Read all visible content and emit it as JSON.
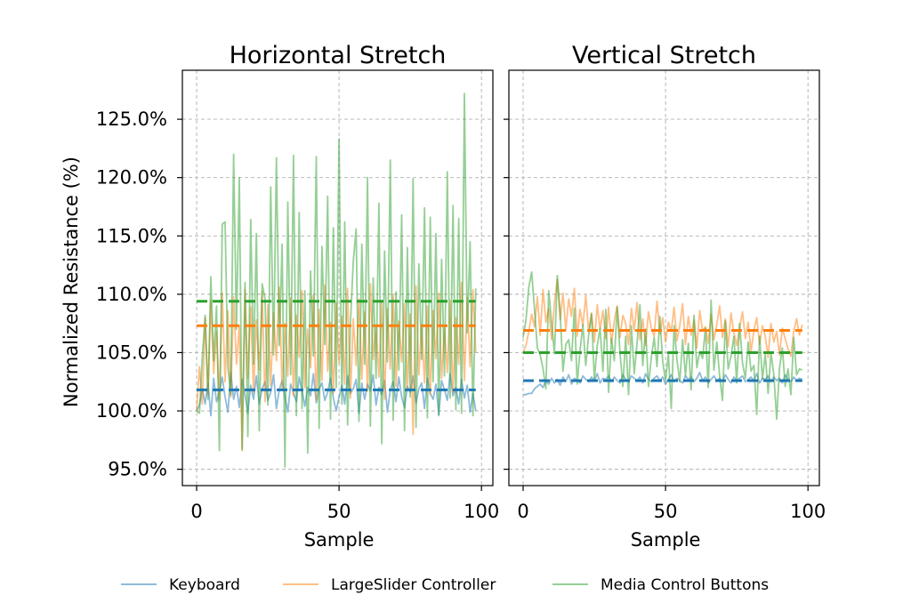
{
  "chart_data": {
    "type": "line",
    "ylabel": "Normalized Resistance (%)",
    "ylim": [
      93.6,
      129.2
    ],
    "yticks": [
      95,
      100,
      105,
      110,
      115,
      120,
      125
    ],
    "ytick_labels": [
      "95.0%",
      "100.0%",
      "105.0%",
      "110.0%",
      "115.0%",
      "120.0%",
      "125.0%"
    ],
    "xlim": [
      -5,
      104
    ],
    "xticks": [
      0,
      50,
      100
    ],
    "xtick_labels": [
      "0",
      "50",
      "100"
    ],
    "legend": {
      "placement": "bottom-center",
      "entries": [
        "Keyboard",
        "LargeSlider Controller",
        "Media Control Buttons"
      ]
    },
    "colors": {
      "keyboard": "#1f77b4",
      "slider": "#ff7f0e",
      "media": "#2ca02c",
      "grid": "#b0b0b0"
    },
    "panels": [
      {
        "title": "Horizontal Stretch",
        "xlabel": "Sample",
        "series": [
          {
            "name": "Keyboard",
            "mean": 101.8,
            "values": [
              100.0,
              100.5,
              101.9,
              100.6,
              102.4,
              99.6,
              102.8,
              100.8,
              101.6,
              102.9,
              101.2,
              99.9,
              103.3,
              101.0,
              102.1,
              100.3,
              102.7,
              101.4,
              99.8,
              102.2,
              101.0,
              103.0,
              100.6,
              101.9,
              102.5,
              100.9,
              101.6,
              103.1,
              100.2,
              101.8,
              102.6,
              101.2,
              99.9,
              102.3,
              101.5,
              100.8,
              102.9,
              101.7,
              100.4,
              102.0,
              101.3,
              103.2,
              100.7,
              101.9,
              102.4,
              100.9,
              101.6,
              102.8,
              101.1,
              100.0,
              101.2,
              102.2,
              100.6,
              103.0,
              101.5,
              101.9,
              102.7,
              99.8,
              102.4,
              101.0,
              102.3,
              101.7,
              103.1,
              100.5,
              102.0,
              101.4,
              102.6,
              99.9,
              101.8,
              102.5,
              100.8,
              102.9,
              101.2,
              100.3,
              102.1,
              101.6,
              103.0,
              100.7,
              101.9,
              102.4,
              100.2,
              102.8,
              101.5,
              101.0,
              102.3,
              99.7,
              102.6,
              101.8,
              100.9,
              103.2,
              101.3,
              102.0,
              100.6,
              102.7,
              101.1,
              102.2,
              99.9,
              101.5,
              100.0
            ]
          },
          {
            "name": "LargeSlider Controller",
            "mean": 107.3,
            "values": [
              100.0,
              103.8,
              100.6,
              108.0,
              101.4,
              109.5,
              103.2,
              106.8,
              100.9,
              110.1,
              102.5,
              108.6,
              101.2,
              109.8,
              104.0,
              107.3,
              96.6,
              110.4,
              102.8,
              108.9,
              101.6,
              107.8,
              103.5,
              110.2,
              100.8,
              109.1,
              102.2,
              108.4,
              104.3,
              110.6,
              101.9,
              107.5,
              103.0,
              109.7,
              101.3,
              108.2,
              104.6,
              110.3,
              102.0,
              107.0,
              103.7,
              109.9,
              100.9,
              108.7,
              102.6,
              110.8,
              103.4,
              107.6,
              101.5,
              109.3,
              104.1,
              108.1,
              102.3,
              110.5,
              101.1,
              107.9,
              103.9,
              109.6,
              102.7,
              108.5,
              101.7,
              110.9,
              104.4,
              107.2,
              102.9,
              109.4,
              101.0,
              108.8,
              103.6,
              110.0,
              102.1,
              107.7,
              104.2,
              109.2,
              101.8,
              108.3,
              98.0,
              110.7,
              103.1,
              107.4,
              102.4,
              109.0,
              101.4,
              108.6,
              104.5,
              110.1,
              102.8,
              107.1,
              103.3,
              109.5,
              101.6,
              108.0,
              104.0,
              111.0,
              102.6,
              109.7,
              103.8,
              110.4,
              105.0
            ]
          },
          {
            "name": "Media Control Buttons",
            "mean": 109.4,
            "values": [
              100.0,
              99.8,
              104.6,
              108.2,
              101.0,
              111.5,
              104.3,
              109.0,
              96.6,
              116.0,
              116.2,
              103.7,
              101.4,
              122.0,
              107.0,
              120.0,
              96.7,
              111.0,
              97.8,
              116.4,
              104.0,
              115.2,
              98.3,
              110.9,
              109.6,
              100.5,
              119.2,
              104.8,
              121.7,
              105.6,
              114.3,
              95.2,
              117.9,
              103.1,
              121.9,
              99.6,
              117.0,
              100.2,
              110.3,
              96.4,
              112.0,
              104.7,
              121.8,
              98.5,
              114.1,
              105.7,
              118.4,
              99.3,
              115.7,
              102.0,
              123.3,
              100.6,
              116.2,
              98.8,
              107.5,
              112.8,
              115.6,
              99.1,
              114.3,
              104.0,
              120.0,
              98.7,
              111.4,
              102.8,
              117.8,
              97.2,
              113.7,
              104.2,
              121.5,
              99.2,
              110.2,
              103.5,
              116.8,
              98.3,
              114.0,
              101.2,
              119.9,
              98.6,
              112.6,
              104.4,
              117.4,
              99.4,
              116.6,
              102.5,
              115.2,
              99.6,
              113.0,
              103.0,
              120.5,
              101.1,
              117.6,
              100.1,
              116.5,
              99.8,
              127.2,
              106.7,
              114.5,
              99.6,
              110.5
            ]
          }
        ]
      },
      {
        "title": "Vertical Stretch",
        "xlabel": "Sample",
        "series": [
          {
            "name": "Keyboard",
            "mean": 102.6,
            "values": [
              101.4,
              101.4,
              101.5,
              101.5,
              101.9,
              102.1,
              102.3,
              102.0,
              102.6,
              102.3,
              102.8,
              102.4,
              102.7,
              102.2,
              102.9,
              102.5,
              103.1,
              102.3,
              102.8,
              102.6,
              102.4,
              103.0,
              102.7,
              102.5,
              102.9,
              102.6,
              103.2,
              102.4,
              102.8,
              102.7,
              103.0,
              102.5,
              102.9,
              102.6,
              102.4,
              103.1,
              102.7,
              102.5,
              103.0,
              102.8,
              102.6,
              102.9,
              102.4,
              103.2,
              102.7,
              102.5,
              102.8,
              103.0,
              102.6,
              102.9,
              102.3,
              102.7,
              103.1,
              102.5,
              102.8,
              102.6,
              102.4,
              103.0,
              102.7,
              102.9,
              102.5,
              102.8,
              103.3,
              102.6,
              102.9,
              102.4,
              102.7,
              103.0,
              102.6,
              102.8,
              102.5,
              103.1,
              102.7,
              102.4,
              102.9,
              102.6,
              102.8,
              103.0,
              102.5,
              102.7,
              102.9,
              102.6,
              103.2,
              102.4,
              102.8,
              102.7,
              103.0,
              102.5,
              102.9,
              102.6,
              102.8,
              102.4,
              103.1,
              102.7,
              102.5,
              102.9,
              102.6,
              102.8,
              102.7
            ]
          },
          {
            "name": "LargeSlider Controller",
            "mean": 106.9,
            "values": [
              105.0,
              105.6,
              106.8,
              108.3,
              107.2,
              109.8,
              106.5,
              110.4,
              107.6,
              108.8,
              106.1,
              109.2,
              111.3,
              107.8,
              110.1,
              106.9,
              109.6,
              108.1,
              110.5,
              106.4,
              108.7,
              107.3,
              109.9,
              106.8,
              108.4,
              105.9,
              109.1,
              107.0,
              108.6,
              106.2,
              108.9,
              105.8,
              107.7,
              109.0,
              106.3,
              108.2,
              107.5,
              105.7,
              108.8,
              106.9,
              109.3,
              106.1,
              107.9,
              105.6,
              108.5,
              107.1,
              106.4,
              109.4,
              106.6,
              108.0,
              105.9,
              107.6,
              106.8,
              108.9,
              106.0,
              107.3,
              109.2,
              105.7,
              108.1,
              106.5,
              107.8,
              105.4,
              108.6,
              106.9,
              107.2,
              105.8,
              108.3,
              106.1,
              107.4,
              109.0,
              106.3,
              107.9,
              105.5,
              108.4,
              106.7,
              105.6,
              107.1,
              108.5,
              106.2,
              107.6,
              105.1,
              106.9,
              108.0,
              105.7,
              107.3,
              106.4,
              104.6,
              107.5,
              105.9,
              106.8,
              104.8,
              107.1,
              106.2,
              105.3,
              104.7,
              106.8,
              107.9,
              106.5,
              107.4
            ]
          },
          {
            "name": "Media Control Buttons",
            "mean": 105.0,
            "values": [
              106.3,
              107.8,
              110.6,
              111.9,
              108.7,
              105.4,
              104.8,
              103.6,
              101.9,
              110.3,
              107.6,
              104.9,
              111.6,
              108.5,
              103.4,
              105.7,
              106.1,
              104.3,
              108.8,
              102.3,
              105.2,
              107.4,
              103.9,
              106.5,
              108.3,
              102.7,
              105.6,
              107.1,
              103.4,
              108.7,
              101.6,
              106.2,
              104.3,
              108.9,
              105.0,
              102.1,
              106.4,
              101.4,
              107.3,
              103.2,
              105.8,
              109.1,
              103.9,
              107.0,
              102.1,
              104.6,
              106.3,
              103.8,
              108.1,
              104.2,
              102.6,
              104.9,
              100.2,
              107.3,
              104.4,
              102.5,
              106.1,
              103.0,
              105.8,
              101.8,
              108.2,
              103.7,
              105.1,
              104.5,
              107.1,
              102.0,
              109.5,
              103.5,
              105.9,
              103.0,
              100.9,
              107.7,
              103.6,
              104.7,
              106.4,
              102.4,
              107.5,
              104.1,
              102.8,
              105.9,
              103.4,
              103.9,
              99.7,
              106.4,
              102.7,
              104.9,
              101.5,
              105.0,
              103.1,
              99.3,
              103.7,
              105.4,
              102.1,
              103.6,
              101.4,
              106.3,
              103.1,
              103.6,
              103.5
            ]
          }
        ]
      }
    ]
  }
}
